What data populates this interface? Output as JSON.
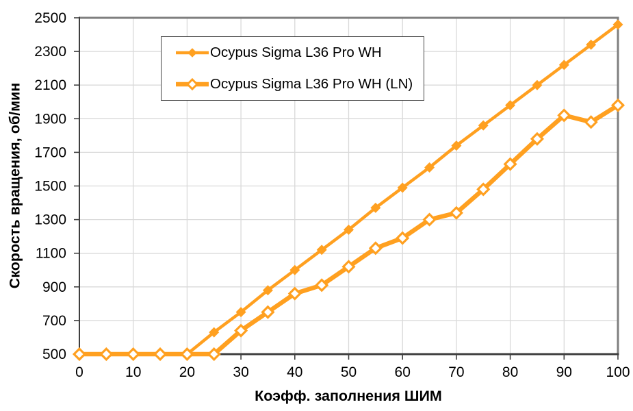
{
  "chart_data": {
    "type": "line",
    "title": "",
    "xlabel": "Коэфф. заполнения ШИМ",
    "ylabel": "Скорость вращения, об/мин",
    "xlim": [
      0,
      100
    ],
    "ylim": [
      500,
      2500
    ],
    "x_ticks": [
      0,
      10,
      20,
      30,
      40,
      50,
      60,
      70,
      80,
      90,
      100
    ],
    "y_ticks": [
      500,
      700,
      900,
      1100,
      1300,
      1500,
      1700,
      1900,
      2100,
      2300,
      2500
    ],
    "grid": true,
    "legend_position": "top-inside-left",
    "x": [
      0,
      5,
      10,
      15,
      20,
      25,
      30,
      35,
      40,
      45,
      50,
      55,
      60,
      65,
      70,
      75,
      80,
      85,
      90,
      95,
      100
    ],
    "series": [
      {
        "name": "Ocypus Sigma L36 Pro WH",
        "marker": "diamond-filled",
        "line_width": 4.5,
        "values": [
          500,
          500,
          500,
          500,
          500,
          630,
          750,
          880,
          1000,
          1120,
          1240,
          1370,
          1490,
          1610,
          1740,
          1860,
          1980,
          2100,
          2220,
          2340,
          2460
        ]
      },
      {
        "name": "Ocypus Sigma L36 Pro WH (LN)",
        "marker": "diamond-open",
        "line_width": 6.5,
        "values": [
          500,
          500,
          500,
          500,
          500,
          500,
          640,
          750,
          860,
          910,
          1020,
          1130,
          1190,
          1300,
          1340,
          1480,
          1630,
          1780,
          1920,
          1880,
          1980
        ]
      }
    ],
    "colors": {
      "series": "#FFA020",
      "grid": "#D9D9D9",
      "axis": "#3F3F3F",
      "border": "#7F7F7F",
      "text": "#000000",
      "background": "#FFFFFF"
    }
  }
}
